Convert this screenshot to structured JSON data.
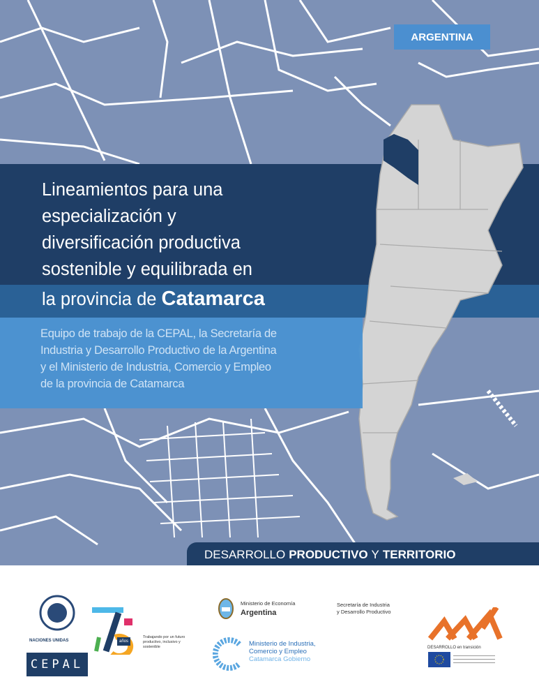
{
  "country_tag": "ARGENTINA",
  "title": {
    "lines": [
      "Lineamientos para una",
      "especialización y",
      "diversificación productiva",
      "sostenible y equilibrada en"
    ],
    "last_line_prefix": "la provincia de",
    "last_line_bold": "Catamarca"
  },
  "subtitle": {
    "lines": [
      "Equipo de trabajo de la CEPAL, la Secretaría de",
      "Industria y Desarrollo Productivo de la Argentina",
      "y el Ministerio de Industria, Comercio y Empleo",
      "de la provincia de Catamarca"
    ]
  },
  "series": {
    "part1": "DESARROLLO",
    "part2": "PRODUCTIVO",
    "part3": "Y",
    "part4": "TERRITORIO"
  },
  "logos": {
    "un": "NACIONES UNIDAS",
    "cepal": "CEPAL",
    "anniversary_number": "75",
    "anniversary_word": "años",
    "anniversary_tagline": "Trabajando por un futuro productivo, inclusivo y sostenible",
    "ministerio_economia": "Ministerio de Economía",
    "argentina": "Argentina",
    "secretaria_line1": "Secretaría de Industria",
    "secretaria_line2": "y Desarrollo Productivo",
    "mice_line1": "Ministerio de Industria,",
    "mice_line2": "Comercio y Empleo",
    "mice_line3": "Catamarca Gobierno",
    "det": "DESARROLLO en transición"
  },
  "colors": {
    "navy": "#1f3e66",
    "mid_blue": "#2a6196",
    "light_blue": "#4892d2",
    "map_bg": "#7d91b6",
    "highlight_province": "#1f3e66"
  }
}
